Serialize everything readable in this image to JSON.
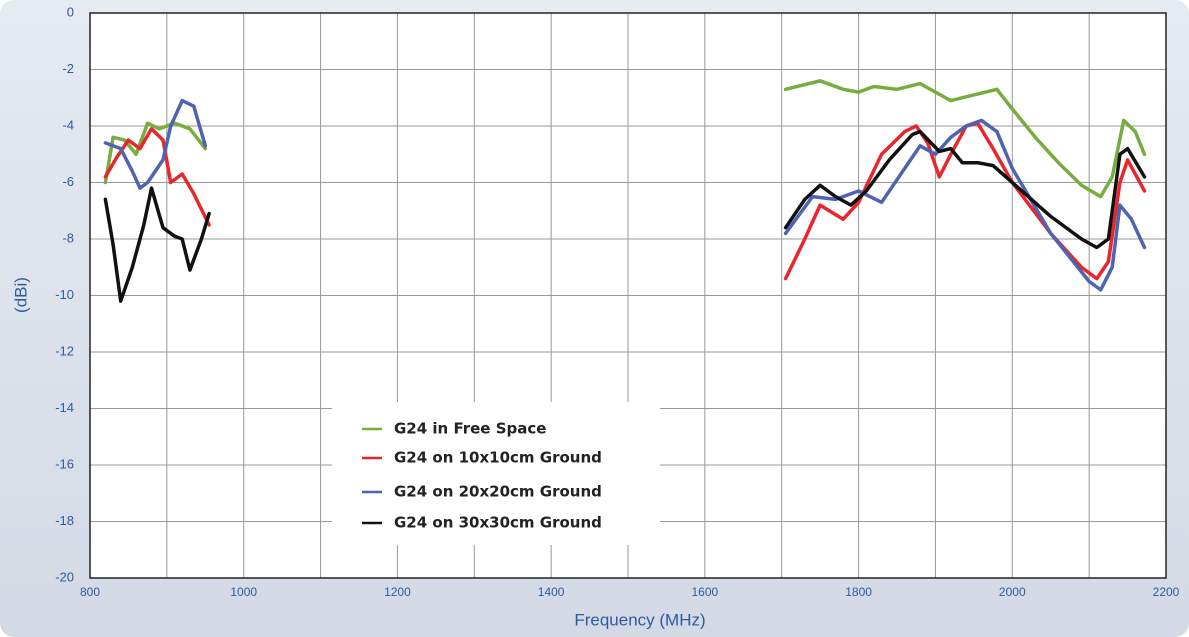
{
  "chart_data": {
    "type": "line",
    "y_label": "(dBi)",
    "x_label": "Frequency (MHz)",
    "xlim": [
      800,
      2200
    ],
    "xticks": [
      800,
      1000,
      1200,
      1400,
      1600,
      1800,
      2000,
      2200
    ],
    "ylim": [
      -20,
      0
    ],
    "yticks": [
      0,
      -2,
      -4,
      -6,
      -8,
      -10,
      -12,
      -14,
      -16,
      -18,
      -20
    ],
    "grid": true,
    "series": [
      {
        "name": "G24 in Free Space",
        "color": "#77ac3e",
        "x": [
          820,
          830,
          845,
          860,
          875,
          890,
          910,
          930,
          950,
          null,
          1705,
          1750,
          1780,
          1800,
          1820,
          1850,
          1880,
          1900,
          1920,
          1950,
          1980,
          2000,
          2030,
          2060,
          2090,
          2115,
          2130,
          2145,
          2160,
          2172
        ],
        "values": [
          -6.0,
          -4.4,
          -4.5,
          -5.0,
          -3.9,
          -4.1,
          -3.9,
          -4.1,
          -4.8,
          null,
          -2.7,
          -2.4,
          -2.7,
          -2.8,
          -2.6,
          -2.7,
          -2.5,
          -2.8,
          -3.1,
          -2.9,
          -2.7,
          -3.4,
          -4.4,
          -5.3,
          -6.1,
          -6.5,
          -5.8,
          -3.8,
          -4.2,
          -5.0
        ]
      },
      {
        "name": "G24 on 10x10cm Ground",
        "color": "#e8262b",
        "x": [
          820,
          835,
          850,
          865,
          880,
          895,
          905,
          920,
          935,
          955,
          null,
          1705,
          1730,
          1750,
          1780,
          1800,
          1830,
          1860,
          1875,
          1890,
          1905,
          1920,
          1940,
          1955,
          1975,
          2000,
          2050,
          2090,
          2110,
          2125,
          2140,
          2150,
          2172
        ],
        "values": [
          -5.8,
          -5.1,
          -4.5,
          -4.8,
          -4.1,
          -4.5,
          -6.0,
          -5.7,
          -6.4,
          -7.5,
          null,
          -9.4,
          -8.0,
          -6.8,
          -7.3,
          -6.7,
          -5.0,
          -4.2,
          -4.0,
          -4.6,
          -5.8,
          -5.0,
          -4.0,
          -3.9,
          -4.8,
          -6.0,
          -7.8,
          -9.0,
          -9.4,
          -8.8,
          -6.0,
          -5.2,
          -6.3
        ]
      },
      {
        "name": "G24 on 20x20cm Ground",
        "color": "#4f63b0",
        "x": [
          820,
          840,
          855,
          865,
          875,
          895,
          905,
          920,
          935,
          950,
          null,
          1705,
          1740,
          1770,
          1800,
          1830,
          1860,
          1880,
          1900,
          1920,
          1940,
          1960,
          1980,
          2000,
          2050,
          2100,
          2115,
          2130,
          2140,
          2155,
          2172
        ],
        "values": [
          -4.6,
          -4.8,
          -5.6,
          -6.2,
          -6.0,
          -5.2,
          -4.0,
          -3.1,
          -3.3,
          -4.7,
          null,
          -7.8,
          -6.5,
          -6.6,
          -6.3,
          -6.7,
          -5.5,
          -4.7,
          -5.0,
          -4.4,
          -4.0,
          -3.8,
          -4.2,
          -5.5,
          -7.8,
          -9.5,
          -9.8,
          -9.0,
          -6.8,
          -7.3,
          -8.3
        ]
      },
      {
        "name": "G24 on 30x30cm Ground",
        "color": "#111111",
        "x": [
          820,
          830,
          840,
          855,
          870,
          880,
          895,
          910,
          920,
          930,
          945,
          955,
          null,
          1705,
          1730,
          1750,
          1770,
          1790,
          1810,
          1840,
          1870,
          1880,
          1905,
          1920,
          1935,
          1955,
          1975,
          2000,
          2050,
          2090,
          2110,
          2125,
          2140,
          2150,
          2172
        ],
        "values": [
          -6.6,
          -8.2,
          -10.2,
          -9.0,
          -7.5,
          -6.2,
          -7.6,
          -7.9,
          -8.0,
          -9.1,
          -8.0,
          -7.1,
          null,
          -7.6,
          -6.6,
          -6.1,
          -6.5,
          -6.8,
          -6.3,
          -5.2,
          -4.3,
          -4.2,
          -4.9,
          -4.8,
          -5.3,
          -5.3,
          -5.4,
          -6.0,
          -7.2,
          -8.0,
          -8.3,
          -8.0,
          -5.0,
          -4.8,
          -5.8
        ]
      }
    ]
  }
}
